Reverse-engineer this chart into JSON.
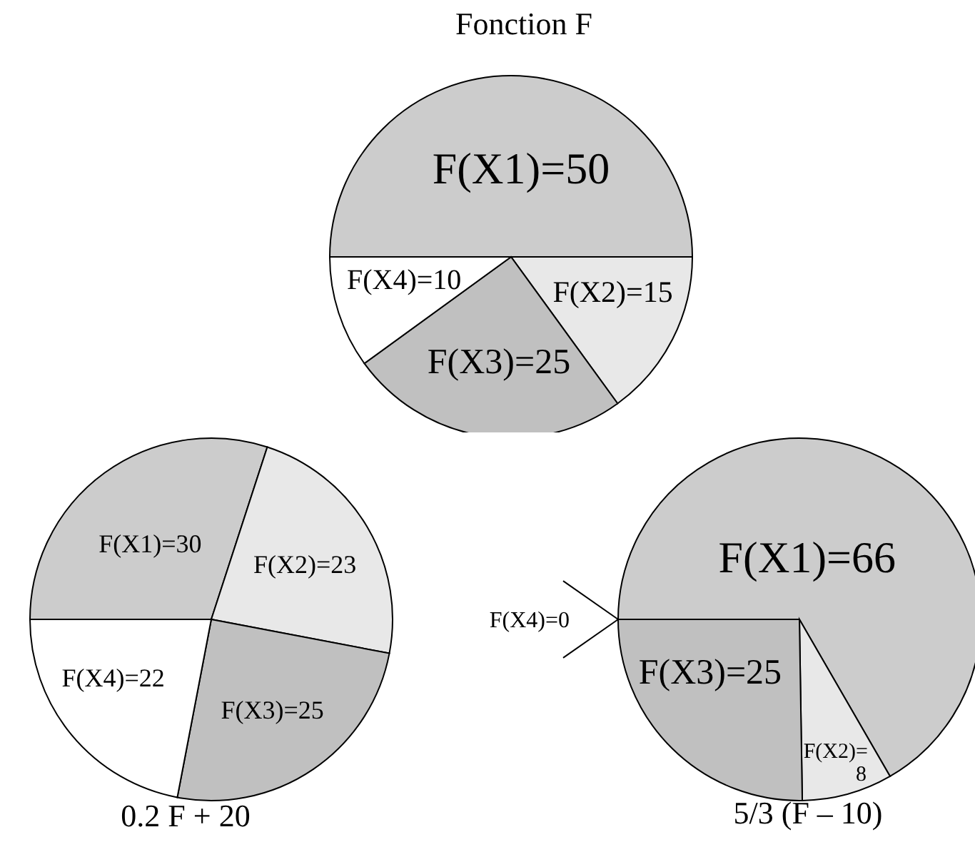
{
  "chart_data": [
    {
      "type": "pie",
      "title": "Fonction F",
      "categories": [
        "F(X1)",
        "F(X2)",
        "F(X3)",
        "F(X4)"
      ],
      "values": [
        50,
        15,
        25,
        10
      ],
      "colors": [
        "#cccccc",
        "#e8e8e8",
        "#c0c0c0",
        "#ffffff"
      ],
      "value_labels": [
        "=50",
        "=15",
        "=25",
        "=10"
      ]
    },
    {
      "type": "pie",
      "title": "0.2 F + 20",
      "categories": [
        "F(X1)",
        "F(X2)",
        "F(X3)",
        "F(X4)"
      ],
      "values": [
        30,
        23,
        25,
        22
      ],
      "colors": [
        "#cccccc",
        "#e8e8e8",
        "#c0c0c0",
        "#ffffff"
      ],
      "value_labels": [
        "=30",
        "=23",
        "=25",
        "=22"
      ]
    },
    {
      "type": "pie",
      "title": "5/3 (F – 10)",
      "categories": [
        "F(X1)",
        "F(X2)",
        "F(X3)",
        "F(X4)"
      ],
      "values": [
        66,
        8,
        25,
        0
      ],
      "colors": [
        "#cccccc",
        "#e8e8e8",
        "#c0c0c0",
        "#ffffff"
      ],
      "value_labels": [
        "=66",
        "=8",
        "=25",
        "=0"
      ]
    }
  ]
}
